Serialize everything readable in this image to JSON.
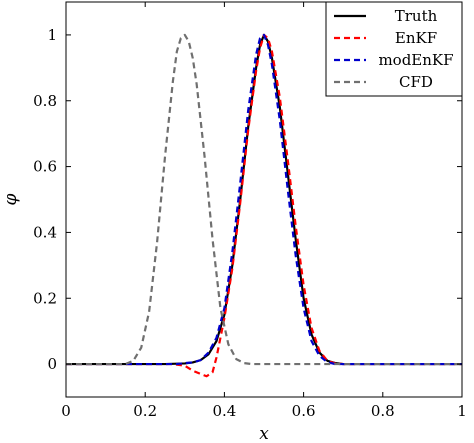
{
  "chart_data": {
    "type": "line",
    "title": "",
    "xlabel": "x",
    "ylabel": "φ",
    "xlim": [
      0,
      1
    ],
    "ylim": [
      -0.1,
      1.1
    ],
    "xticks": [
      0,
      0.2,
      0.4,
      0.6,
      0.8,
      1
    ],
    "xtick_labels": [
      "0",
      "0.2",
      "0.4",
      "0.6",
      "0.8",
      "1"
    ],
    "yticks": [
      0,
      0.2,
      0.4,
      0.6,
      0.8,
      1
    ],
    "ytick_labels": [
      "0",
      "0.2",
      "0.4",
      "0.6",
      "0.8",
      "1"
    ],
    "grid": false,
    "legend_position": "top-right",
    "series": [
      {
        "name": "Truth",
        "color": "#000000",
        "style": "solid",
        "x": [
          0,
          0.25,
          0.3,
          0.32,
          0.34,
          0.36,
          0.38,
          0.4,
          0.42,
          0.44,
          0.46,
          0.48,
          0.49,
          0.5,
          0.51,
          0.52,
          0.54,
          0.56,
          0.58,
          0.6,
          0.62,
          0.64,
          0.66,
          0.68,
          0.7,
          1
        ],
        "y": [
          0,
          0,
          0.002,
          0.005,
          0.012,
          0.03,
          0.07,
          0.15,
          0.3,
          0.5,
          0.72,
          0.9,
          0.97,
          1.0,
          0.98,
          0.93,
          0.78,
          0.58,
          0.38,
          0.2,
          0.09,
          0.035,
          0.01,
          0.003,
          0,
          0
        ]
      },
      {
        "name": "EnKF",
        "color": "#ff0000",
        "style": "dashed",
        "x": [
          0,
          0.27,
          0.3,
          0.32,
          0.34,
          0.355,
          0.37,
          0.38,
          0.4,
          0.42,
          0.44,
          0.46,
          0.48,
          0.49,
          0.5,
          0.51,
          0.52,
          0.54,
          0.56,
          0.58,
          0.6,
          0.62,
          0.64,
          0.66,
          0.68,
          0.7,
          1
        ],
        "y": [
          0,
          0,
          -0.005,
          -0.02,
          -0.03,
          -0.037,
          -0.025,
          0.02,
          0.14,
          0.29,
          0.49,
          0.71,
          0.89,
          0.96,
          1.0,
          0.99,
          0.95,
          0.81,
          0.62,
          0.42,
          0.24,
          0.11,
          0.04,
          0.01,
          0.002,
          0,
          0
        ]
      },
      {
        "name": "modEnKF",
        "color": "#0000cc",
        "style": "dashed",
        "x": [
          0,
          0.28,
          0.3,
          0.32,
          0.34,
          0.36,
          0.38,
          0.4,
          0.42,
          0.44,
          0.46,
          0.48,
          0.49,
          0.5,
          0.51,
          0.52,
          0.54,
          0.56,
          0.58,
          0.6,
          0.62,
          0.64,
          0.66,
          0.68,
          1
        ],
        "y": [
          0,
          0,
          0.003,
          0.005,
          0.012,
          0.035,
          0.08,
          0.17,
          0.34,
          0.55,
          0.77,
          0.94,
          0.99,
          1.0,
          0.97,
          0.91,
          0.74,
          0.53,
          0.33,
          0.17,
          0.07,
          0.025,
          0.006,
          0,
          0
        ]
      },
      {
        "name": "CFD",
        "color": "#707070",
        "style": "dashed",
        "x": [
          0,
          0.15,
          0.17,
          0.19,
          0.21,
          0.23,
          0.25,
          0.27,
          0.28,
          0.29,
          0.3,
          0.31,
          0.32,
          0.33,
          0.35,
          0.37,
          0.39,
          0.41,
          0.43,
          0.45,
          0.47,
          0.5,
          1
        ],
        "y": [
          0,
          0,
          0.01,
          0.05,
          0.16,
          0.37,
          0.63,
          0.86,
          0.95,
          0.99,
          1.0,
          0.98,
          0.93,
          0.85,
          0.63,
          0.38,
          0.17,
          0.06,
          0.015,
          0.003,
          0,
          0,
          0
        ]
      }
    ]
  }
}
